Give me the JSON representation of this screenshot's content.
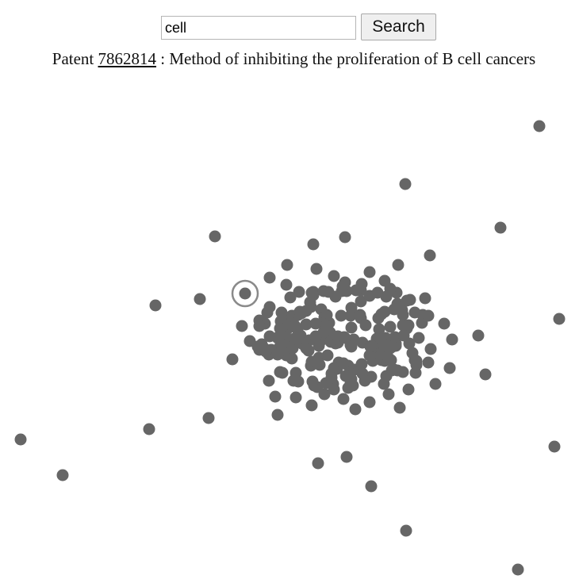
{
  "search": {
    "value": "cell",
    "button_label": "Search"
  },
  "patent": {
    "prefix": "Patent",
    "number": "7862814",
    "separator": ":",
    "title": "Method of inhibiting the proliferation of B cell cancers"
  },
  "graph": {
    "node_color": "#666666",
    "selected_ring_color": "#8a8a8a"
  }
}
